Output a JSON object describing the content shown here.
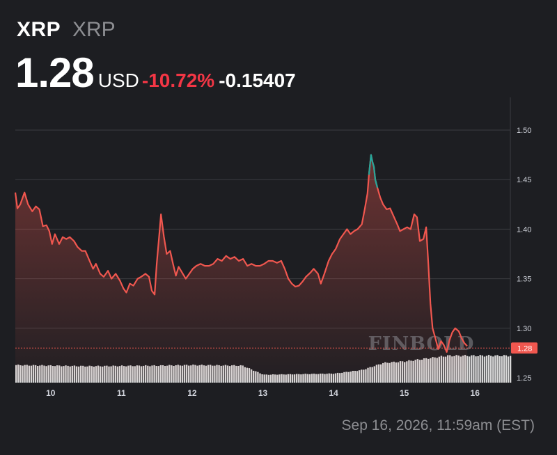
{
  "header": {
    "symbol": "XRP",
    "name": "XRP",
    "price": "1.28",
    "currency": "USD",
    "change_percent": "-10.72%",
    "change_abs": "-0.15407"
  },
  "timestamp": "Sep 16, 2026, 11:59am (EST)",
  "watermark": "FINBOLD",
  "colors": {
    "background": "#1d1e22",
    "line_down": "#f0574f",
    "line_up": "#26a69a",
    "change_negative": "#f23645",
    "volume": "#d8d8d8",
    "last_price_label_bg": "#f0574f"
  },
  "chart_data": {
    "type": "line",
    "x_tick_labels": [
      "10",
      "11",
      "12",
      "13",
      "14",
      "15",
      "16"
    ],
    "x_ticks": [
      10,
      11,
      12,
      13,
      14,
      15,
      16
    ],
    "xlim": [
      9.5,
      16.5
    ],
    "ylim": [
      1.25,
      1.52
    ],
    "y_tick_labels": [
      "1.50",
      "1.45",
      "1.40",
      "1.35",
      "1.30",
      "1.25"
    ],
    "y_ticks": [
      1.5,
      1.45,
      1.4,
      1.35,
      1.3,
      1.25
    ],
    "y_gridlines": [
      1.3,
      1.35,
      1.4,
      1.45,
      1.5
    ],
    "last_price": 1.28,
    "last_price_label": "1.28",
    "series": [
      {
        "values": [
          [
            9.5,
            1.437
          ],
          [
            9.53,
            1.421
          ],
          [
            9.57,
            1.425
          ],
          [
            9.63,
            1.437
          ],
          [
            9.68,
            1.425
          ],
          [
            9.74,
            1.418
          ],
          [
            9.79,
            1.423
          ],
          [
            9.84,
            1.42
          ],
          [
            9.89,
            1.403
          ],
          [
            9.94,
            1.404
          ],
          [
            9.98,
            1.398
          ],
          [
            10.02,
            1.385
          ],
          [
            10.06,
            1.395
          ],
          [
            10.12,
            1.385
          ],
          [
            10.17,
            1.392
          ],
          [
            10.22,
            1.39
          ],
          [
            10.27,
            1.392
          ],
          [
            10.33,
            1.388
          ],
          [
            10.38,
            1.382
          ],
          [
            10.44,
            1.378
          ],
          [
            10.49,
            1.378
          ],
          [
            10.55,
            1.368
          ],
          [
            10.6,
            1.36
          ],
          [
            10.64,
            1.365
          ],
          [
            10.7,
            1.355
          ],
          [
            10.75,
            1.352
          ],
          [
            10.81,
            1.358
          ],
          [
            10.86,
            1.35
          ],
          [
            10.92,
            1.355
          ],
          [
            10.98,
            1.348
          ],
          [
            11.03,
            1.34
          ],
          [
            11.07,
            1.336
          ],
          [
            11.12,
            1.345
          ],
          [
            11.17,
            1.343
          ],
          [
            11.23,
            1.35
          ],
          [
            11.28,
            1.352
          ],
          [
            11.34,
            1.355
          ],
          [
            11.39,
            1.352
          ],
          [
            11.43,
            1.338
          ],
          [
            11.47,
            1.334
          ],
          [
            11.5,
            1.365
          ],
          [
            11.54,
            1.398
          ],
          [
            11.56,
            1.415
          ],
          [
            11.6,
            1.393
          ],
          [
            11.64,
            1.375
          ],
          [
            11.69,
            1.378
          ],
          [
            11.73,
            1.365
          ],
          [
            11.77,
            1.353
          ],
          [
            11.81,
            1.362
          ],
          [
            11.86,
            1.356
          ],
          [
            11.91,
            1.35
          ],
          [
            11.96,
            1.355
          ],
          [
            12.01,
            1.36
          ],
          [
            12.06,
            1.363
          ],
          [
            12.12,
            1.365
          ],
          [
            12.18,
            1.363
          ],
          [
            12.24,
            1.363
          ],
          [
            12.3,
            1.365
          ],
          [
            12.36,
            1.37
          ],
          [
            12.42,
            1.368
          ],
          [
            12.48,
            1.373
          ],
          [
            12.54,
            1.37
          ],
          [
            12.6,
            1.372
          ],
          [
            12.66,
            1.368
          ],
          [
            12.72,
            1.37
          ],
          [
            12.78,
            1.363
          ],
          [
            12.84,
            1.365
          ],
          [
            12.9,
            1.363
          ],
          [
            12.96,
            1.363
          ],
          [
            13.02,
            1.365
          ],
          [
            13.08,
            1.368
          ],
          [
            13.14,
            1.368
          ],
          [
            13.2,
            1.366
          ],
          [
            13.26,
            1.368
          ],
          [
            13.31,
            1.36
          ],
          [
            13.36,
            1.35
          ],
          [
            13.41,
            1.345
          ],
          [
            13.46,
            1.342
          ],
          [
            13.51,
            1.343
          ],
          [
            13.56,
            1.347
          ],
          [
            13.61,
            1.352
          ],
          [
            13.67,
            1.356
          ],
          [
            13.72,
            1.36
          ],
          [
            13.78,
            1.355
          ],
          [
            13.82,
            1.345
          ],
          [
            13.87,
            1.355
          ],
          [
            13.93,
            1.368
          ],
          [
            13.98,
            1.375
          ],
          [
            14.03,
            1.38
          ],
          [
            14.09,
            1.39
          ],
          [
            14.14,
            1.395
          ],
          [
            14.19,
            1.4
          ],
          [
            14.24,
            1.395
          ],
          [
            14.29,
            1.398
          ],
          [
            14.34,
            1.4
          ],
          [
            14.4,
            1.405
          ],
          [
            14.44,
            1.42
          ],
          [
            14.48,
            1.436
          ],
          [
            14.5,
            1.455
          ],
          [
            14.53,
            1.475
          ],
          [
            14.55,
            1.468
          ],
          [
            14.57,
            1.463
          ],
          [
            14.59,
            1.45
          ],
          [
            14.62,
            1.442
          ],
          [
            14.66,
            1.432
          ],
          [
            14.7,
            1.425
          ],
          [
            14.75,
            1.42
          ],
          [
            14.8,
            1.421
          ],
          [
            14.85,
            1.413
          ],
          [
            14.9,
            1.405
          ],
          [
            14.94,
            1.398
          ],
          [
            14.99,
            1.4
          ],
          [
            15.04,
            1.402
          ],
          [
            15.09,
            1.4
          ],
          [
            15.14,
            1.415
          ],
          [
            15.18,
            1.412
          ],
          [
            15.22,
            1.388
          ],
          [
            15.27,
            1.39
          ],
          [
            15.31,
            1.402
          ],
          [
            15.34,
            1.365
          ],
          [
            15.37,
            1.325
          ],
          [
            15.4,
            1.3
          ],
          [
            15.44,
            1.29
          ],
          [
            15.48,
            1.279
          ],
          [
            15.52,
            1.287
          ],
          [
            15.56,
            1.283
          ],
          [
            15.6,
            1.276
          ],
          [
            15.64,
            1.288
          ],
          [
            15.68,
            1.296
          ],
          [
            15.72,
            1.3
          ],
          [
            15.77,
            1.297
          ],
          [
            15.81,
            1.29
          ],
          [
            15.85,
            1.285
          ],
          [
            15.89,
            1.282
          ]
        ]
      }
    ],
    "up_segment_x_range": [
      14.49,
      14.62
    ],
    "volume_relative": [
      [
        9.5,
        0.62
      ],
      [
        10.5,
        0.58
      ],
      [
        11.5,
        0.6
      ],
      [
        12.0,
        0.62
      ],
      [
        12.7,
        0.6
      ],
      [
        13.0,
        0.28
      ],
      [
        14.0,
        0.32
      ],
      [
        14.4,
        0.45
      ],
      [
        14.7,
        0.7
      ],
      [
        15.0,
        0.75
      ],
      [
        15.3,
        0.85
      ],
      [
        15.6,
        0.95
      ],
      [
        15.9,
        0.95
      ]
    ]
  }
}
